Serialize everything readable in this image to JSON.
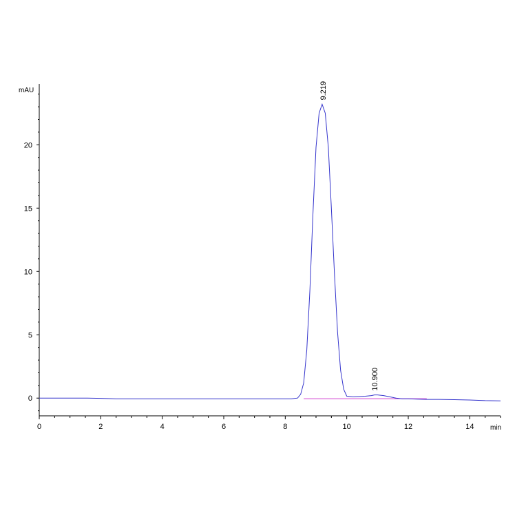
{
  "chart_data": {
    "type": "line",
    "title": "",
    "xlabel": "",
    "ylabel": "",
    "x_unit": "min",
    "y_unit": "mAU",
    "xlim": [
      0,
      15
    ],
    "ylim": [
      -1.4,
      24.8
    ],
    "x_ticks": [
      0,
      2,
      4,
      6,
      8,
      10,
      12,
      14
    ],
    "y_ticks": [
      0,
      5,
      10,
      15,
      20
    ],
    "grid": false,
    "line_color": "#3333cc",
    "baseline_color": "#d040d0",
    "series": [
      {
        "x": [
          0,
          0.5,
          1.0,
          1.5,
          2.0,
          2.5,
          3.0,
          3.5,
          4.0,
          4.5,
          5.0,
          5.5,
          6.0,
          6.5,
          7.0,
          7.5,
          8.0,
          8.2,
          8.4,
          8.5,
          8.6,
          8.7,
          8.8,
          8.9,
          9.0,
          9.1,
          9.2,
          9.3,
          9.4,
          9.5,
          9.6,
          9.7,
          9.8,
          9.9,
          10.0,
          10.2,
          10.4,
          10.6,
          10.8,
          10.9,
          11.0,
          11.2,
          11.4,
          11.6,
          11.8,
          12.0,
          12.3,
          12.6,
          13.0,
          13.5,
          14.0,
          14.5,
          15.0
        ],
        "y": [
          0.0,
          0.0,
          0.0,
          0.0,
          -0.02,
          -0.05,
          -0.05,
          -0.05,
          -0.05,
          -0.05,
          -0.05,
          -0.05,
          -0.05,
          -0.05,
          -0.05,
          -0.05,
          -0.05,
          -0.05,
          0.0,
          0.3,
          1.2,
          3.8,
          8.5,
          14.5,
          19.8,
          22.5,
          23.2,
          22.5,
          19.8,
          15.0,
          9.8,
          5.2,
          2.2,
          0.7,
          0.15,
          0.1,
          0.12,
          0.15,
          0.2,
          0.25,
          0.25,
          0.2,
          0.1,
          0.0,
          -0.05,
          -0.05,
          -0.08,
          -0.1,
          -0.1,
          -0.12,
          -0.15,
          -0.2,
          -0.22
        ]
      }
    ],
    "peaks": [
      {
        "x": 9.219,
        "y": 23.2,
        "label": "9.219"
      },
      {
        "x": 10.9,
        "y": 0.25,
        "label": "10.900"
      }
    ]
  }
}
